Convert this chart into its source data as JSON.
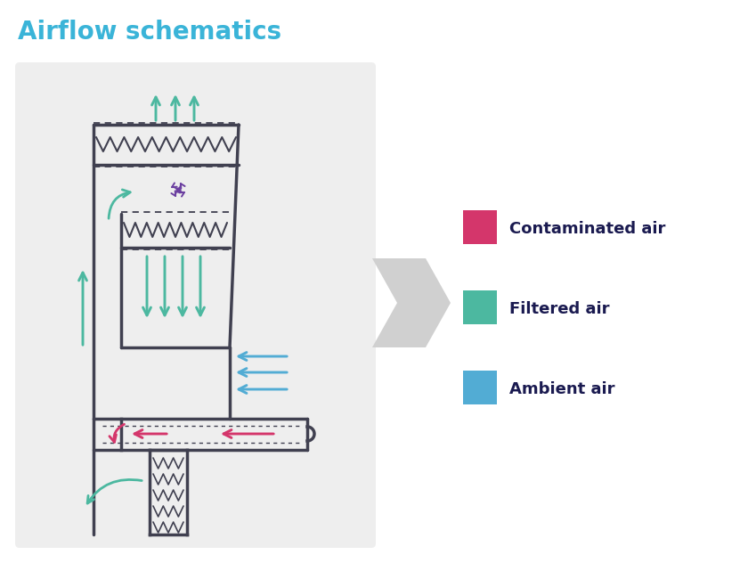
{
  "title": "Airflow schematics",
  "title_color": "#3ab4d8",
  "title_fontsize": 20,
  "bg_color": "#ffffff",
  "panel_bg": "#eeeeee",
  "legend_items": [
    {
      "label": "Contaminated air",
      "color": "#d4366b"
    },
    {
      "label": "Filtered air",
      "color": "#4cb8a0"
    },
    {
      "label": "Ambient air",
      "color": "#52acd4"
    }
  ],
  "legend_text_color": "#1a1a50",
  "cabinet_color": "#404050",
  "teal": "#4cb8a0",
  "pink": "#d4366b",
  "blue": "#52acd4",
  "purple": "#6b3fa0"
}
